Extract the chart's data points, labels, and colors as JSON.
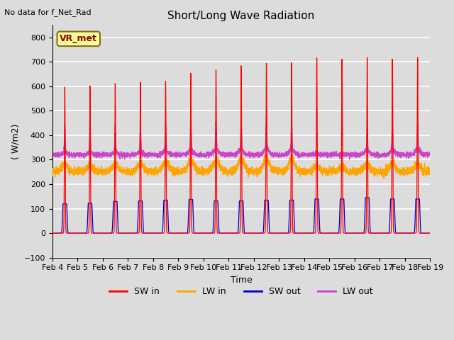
{
  "title": "Short/Long Wave Radiation",
  "xlabel": "Time",
  "ylabel": "( W/m2)",
  "ylim": [
    -100,
    850
  ],
  "yticks": [
    -100,
    0,
    100,
    200,
    300,
    400,
    500,
    600,
    700,
    800
  ],
  "top_left_text": "No data for f_Net_Rad",
  "box_label": "VR_met",
  "background_color": "#dcdcdc",
  "plot_bg_color": "#dcdcdc",
  "grid_color": "#ffffff",
  "sw_in_color": "#ff0000",
  "lw_in_color": "#ffa500",
  "sw_out_color": "#0000cc",
  "lw_out_color": "#cc44cc",
  "n_days": 15,
  "day_start": 4,
  "samples_per_day": 288,
  "sw_in_peaks": [
    600,
    605,
    615,
    620,
    623,
    657,
    670,
    688,
    698,
    700,
    720,
    715,
    722,
    715,
    722
  ],
  "sw_out_peaks": [
    120,
    122,
    130,
    132,
    135,
    138,
    132,
    132,
    135,
    135,
    140,
    140,
    145,
    140,
    140
  ],
  "lw_in_base": 252,
  "lw_in_noise": 8,
  "lw_in_day_add": [
    28,
    25,
    28,
    32,
    40,
    45,
    45,
    52,
    52,
    52,
    20,
    15,
    28,
    32,
    28
  ],
  "lw_out_night": 320,
  "lw_out_noise": 5,
  "lw_out_day_peaks": [
    430,
    420,
    435,
    435,
    450,
    450,
    455,
    460,
    470,
    440,
    320,
    315,
    430,
    455,
    450
  ],
  "lw_out_shoulder": [
    330,
    330,
    330,
    330,
    335,
    335,
    340,
    340,
    345,
    340,
    325,
    325,
    335,
    340,
    340
  ]
}
